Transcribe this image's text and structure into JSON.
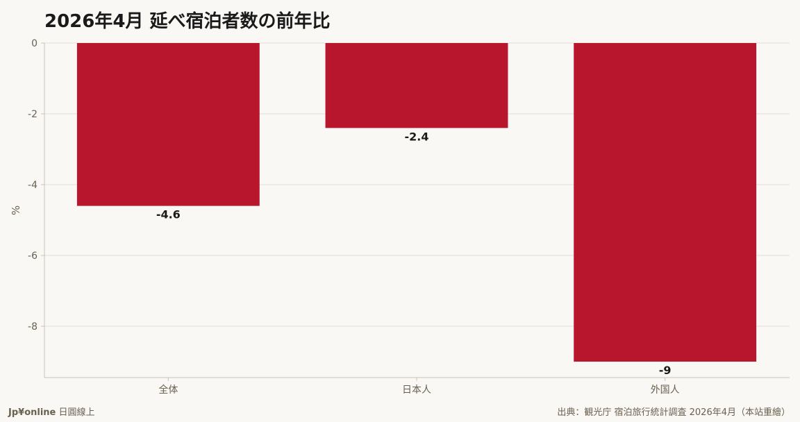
{
  "chart_data": {
    "type": "bar",
    "title": "2026年4月 延べ宿泊者数の前年比",
    "ylabel": "%",
    "xlabel": "",
    "categories": [
      "全体",
      "日本人",
      "外国人"
    ],
    "values": [
      -4.6,
      -2.4,
      -9
    ],
    "data_labels": [
      "-4.6",
      "-2.4",
      "-9"
    ],
    "ylim": [
      -9.45,
      0
    ],
    "yticks": [
      0,
      -2,
      -4,
      -6,
      -8
    ],
    "ytick_labels": [
      "0",
      "-2",
      "-4",
      "-6",
      "-8"
    ],
    "grid": true,
    "bar_color": "#b8162c"
  },
  "footer": {
    "brand": "Jp¥online",
    "brand_suffix": "日圓線上",
    "source": "出典：観光庁 宿泊旅行統計調査 2026年4月（本站重繪）"
  }
}
